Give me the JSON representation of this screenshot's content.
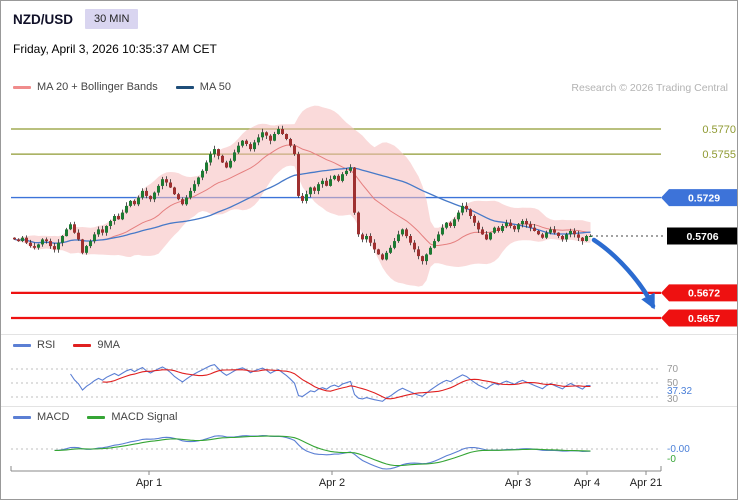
{
  "header": {
    "symbol": "NZD/USD",
    "timeframe": "30 MIN",
    "datetime": "Friday, April 3, 2026 10:35:37 AM CET",
    "research": "Research © 2026 Trading Central"
  },
  "legends": {
    "main": [
      {
        "label": "MA 20 + Bollinger Bands",
        "color": "#f08c8c"
      },
      {
        "label": "MA 50",
        "color": "#1f4e79"
      }
    ],
    "rsi": [
      {
        "label": "RSI",
        "color": "#5b7fd4"
      },
      {
        "label": "9MA",
        "color": "#e02020"
      }
    ],
    "macd": [
      {
        "label": "MACD",
        "color": "#5b7fd4"
      },
      {
        "label": "MACD Signal",
        "color": "#35a535"
      }
    ]
  },
  "chart_data": [
    {
      "type": "candlestick",
      "title": "NZD/USD 30 MIN with MA 20 + Bollinger Bands and MA 50",
      "x_ticks": [
        "Apr 1",
        "Apr 2",
        "Apr 3",
        "Apr 4",
        "Apr 21"
      ],
      "ylim": [
        0.564,
        0.579
      ],
      "last_price": 0.5706,
      "levels": [
        {
          "price": 0.577,
          "label": "0.5770",
          "color": "#8f9a32",
          "kind": "plain",
          "width": 1.2
        },
        {
          "price": 0.5755,
          "label": "0.5755",
          "color": "#8f9a32",
          "kind": "plain",
          "width": 1.2
        },
        {
          "price": 0.5729,
          "label": "0.5729",
          "color": "#3d73d9",
          "kind": "tag",
          "width": 1.4
        },
        {
          "price": 0.5706,
          "label": "0.5706",
          "color": "#000000",
          "kind": "current",
          "width": 1
        },
        {
          "price": 0.5672,
          "label": "0.5672",
          "color": "#ee1111",
          "kind": "tag",
          "width": 2.2
        },
        {
          "price": 0.5657,
          "label": "0.5657",
          "color": "#ee1111",
          "kind": "tag",
          "width": 2.2
        }
      ],
      "closes_pips_over_056": [
        104,
        103,
        105,
        102,
        100,
        99,
        101,
        104,
        103,
        100,
        98,
        102,
        106,
        110,
        113,
        108,
        104,
        96,
        100,
        103,
        107,
        110,
        108,
        112,
        115,
        118,
        116,
        120,
        124,
        127,
        125,
        129,
        133,
        130,
        128,
        132,
        136,
        140,
        138,
        135,
        131,
        128,
        125,
        129,
        133,
        137,
        141,
        145,
        150,
        155,
        158,
        154,
        150,
        147,
        151,
        156,
        160,
        163,
        161,
        158,
        162,
        165,
        168,
        166,
        163,
        167,
        170,
        167,
        164,
        160,
        155,
        130,
        127,
        131,
        135,
        133,
        137,
        139,
        136,
        140,
        142,
        139,
        143,
        145,
        147,
        120,
        107,
        104,
        106,
        102,
        98,
        95,
        92,
        96,
        99,
        103,
        107,
        110,
        106,
        102,
        98,
        94,
        91,
        95,
        99,
        103,
        107,
        111,
        114,
        112,
        116,
        120,
        124,
        122,
        118,
        114,
        110,
        107,
        104,
        108,
        111,
        109,
        112,
        114,
        112,
        110,
        113,
        115,
        113,
        111,
        109,
        107,
        105,
        108,
        110,
        108,
        106,
        104,
        107,
        109,
        107,
        105,
        103,
        106,
        106
      ],
      "candle_up_color": "#1d7a33",
      "candle_down_color": "#9e3030",
      "bollinger_fill": "#f6bcbc",
      "ma20_color": "#e57f7f",
      "ma50_color": "#4679c8",
      "forecast_arrow": {
        "from_price": 0.5706,
        "to_price": 0.5657,
        "direction": "down",
        "color": "#2b6bd0"
      }
    },
    {
      "type": "line",
      "name": "RSI",
      "series": [
        "RSI",
        "9MA"
      ],
      "gridlines": [
        70,
        50,
        30
      ],
      "axis_labels": [
        "70",
        "50",
        "37.32",
        "30"
      ],
      "last_value": 37.32,
      "last_value_color": "#4a7fd8"
    },
    {
      "type": "line",
      "name": "MACD",
      "series": [
        "MACD",
        "MACD Signal"
      ],
      "zero_line": 0,
      "axis_labels": [
        "-0.00",
        "-0"
      ],
      "axis_label_colors": [
        "#4a7fd8",
        "#35a535"
      ]
    }
  ]
}
